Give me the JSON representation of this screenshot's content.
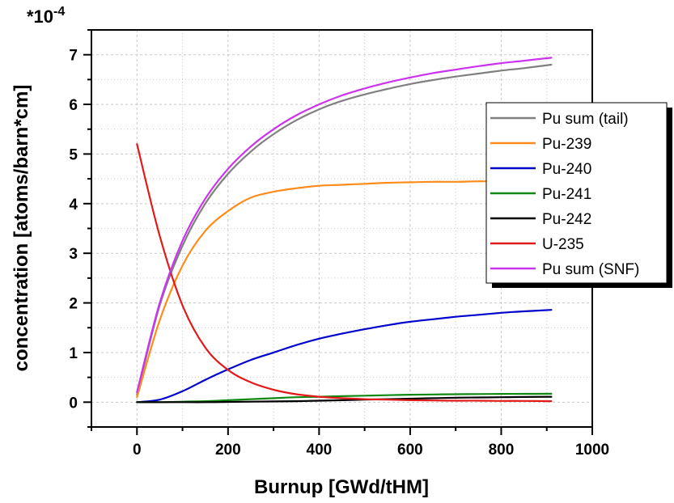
{
  "chart_data": {
    "type": "line",
    "title": "",
    "xlabel": "Burnup [GWd/tHM]",
    "ylabel": "concentration [atoms/barn*cm]",
    "y_multiplier": "*10",
    "y_multiplier_exp": "-4",
    "xlim": [
      -100,
      1000
    ],
    "ylim": [
      -0.5,
      7.5
    ],
    "xticks": [
      0,
      200,
      400,
      600,
      800,
      1000
    ],
    "yticks": [
      0,
      1,
      2,
      3,
      4,
      5,
      6,
      7
    ],
    "grid": true,
    "legend_position": "right",
    "x": [
      0,
      50,
      100,
      150,
      200,
      250,
      300,
      350,
      400,
      450,
      500,
      550,
      600,
      650,
      700,
      750,
      800,
      850,
      910
    ],
    "series": [
      {
        "name": "Pu sum (tail)",
        "color": "#808080",
        "values": [
          0.15,
          1.95,
          3.15,
          4.0,
          4.6,
          5.05,
          5.4,
          5.68,
          5.9,
          6.07,
          6.2,
          6.31,
          6.41,
          6.49,
          6.56,
          6.62,
          6.68,
          6.73,
          6.8
        ]
      },
      {
        "name": "Pu-239",
        "color": "#ff8c1a",
        "values": [
          0.1,
          1.65,
          2.75,
          3.45,
          3.85,
          4.12,
          4.24,
          4.31,
          4.36,
          4.38,
          4.4,
          4.42,
          4.43,
          4.44,
          4.44,
          4.45,
          4.45,
          4.46,
          4.46
        ]
      },
      {
        "name": "Pu-240",
        "color": "#0000cc",
        "values": [
          0.0,
          0.05,
          0.22,
          0.45,
          0.66,
          0.85,
          1.0,
          1.15,
          1.28,
          1.38,
          1.47,
          1.55,
          1.62,
          1.67,
          1.72,
          1.76,
          1.8,
          1.83,
          1.86
        ]
      },
      {
        "name": "Pu-241",
        "color": "#118811",
        "values": [
          0.0,
          0.0,
          0.01,
          0.02,
          0.04,
          0.06,
          0.08,
          0.1,
          0.11,
          0.12,
          0.13,
          0.14,
          0.15,
          0.155,
          0.16,
          0.163,
          0.166,
          0.168,
          0.17
        ]
      },
      {
        "name": "Pu-242",
        "color": "#000000",
        "values": [
          0.0,
          0.0,
          0.0,
          0.0,
          0.005,
          0.01,
          0.015,
          0.02,
          0.03,
          0.04,
          0.05,
          0.06,
          0.07,
          0.08,
          0.09,
          0.095,
          0.1,
          0.105,
          0.11
        ]
      },
      {
        "name": "U-235",
        "color": "#e31a1a",
        "values": [
          5.2,
          3.35,
          1.95,
          1.1,
          0.65,
          0.4,
          0.25,
          0.16,
          0.11,
          0.08,
          0.06,
          0.05,
          0.04,
          0.035,
          0.03,
          0.03,
          0.025,
          0.025,
          0.02
        ]
      },
      {
        "name": "Pu sum (SNF)",
        "color": "#cc33ee",
        "values": [
          0.2,
          2.0,
          3.25,
          4.1,
          4.7,
          5.15,
          5.5,
          5.78,
          6.0,
          6.18,
          6.32,
          6.44,
          6.54,
          6.63,
          6.7,
          6.77,
          6.83,
          6.88,
          6.94
        ]
      }
    ]
  }
}
